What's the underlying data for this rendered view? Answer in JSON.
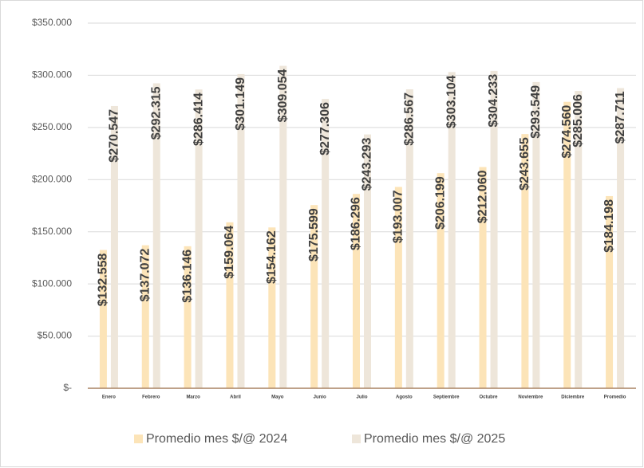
{
  "chart_data": {
    "type": "bar",
    "categories": [
      "Enero",
      "Febrero",
      "Marzo",
      "Abril",
      "Mayo",
      "Junio",
      "Julio",
      "Agosto",
      "Septiembre",
      "Octubre",
      "Noviembre",
      "Diciembre",
      "Promedio"
    ],
    "series": [
      {
        "name": "Promedio mes $/@ 2024",
        "color": "#fce4b8",
        "values": [
          132558,
          137072,
          136146,
          159064,
          154162,
          175599,
          186296,
          193007,
          206199,
          212060,
          243655,
          274560,
          184198
        ],
        "value_labels": [
          "$132.558",
          "$137.072",
          "$136.146",
          "$159.064",
          "$154.162",
          "$175.599",
          "$186.296",
          "$193.007",
          "$206.199",
          "$212.060",
          "$243.655",
          "$274.560",
          "$184.198"
        ]
      },
      {
        "name": "Promedio mes $/@ 2025",
        "color": "#eee6da",
        "values": [
          270547,
          292315,
          286414,
          301149,
          309054,
          277306,
          243293,
          286567,
          303104,
          304233,
          293549,
          285006,
          287711
        ],
        "value_labels": [
          "$270.547",
          "$292.315",
          "$286.414",
          "$301.149",
          "$309.054",
          "$277.306",
          "$243.293",
          "$286.567",
          "$303.104",
          "$304.233",
          "$293.549",
          "$285.006",
          "$287.711"
        ]
      }
    ],
    "ylim": [
      0,
      350000
    ],
    "yticks": [
      {
        "value": 0,
        "label": "$-"
      },
      {
        "value": 50000,
        "label": "$50.000"
      },
      {
        "value": 100000,
        "label": "$100.000"
      },
      {
        "value": 150000,
        "label": "$150.000"
      },
      {
        "value": 200000,
        "label": "$200.000"
      },
      {
        "value": 250000,
        "label": "$250.000"
      },
      {
        "value": 300000,
        "label": "$300.000"
      },
      {
        "value": 350000,
        "label": "$350.000"
      }
    ],
    "grid": true,
    "legend": "bottom"
  }
}
